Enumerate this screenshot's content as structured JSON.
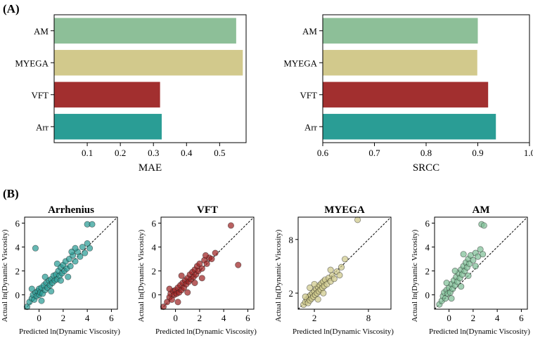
{
  "panel_labels": {
    "a": "(A)",
    "b": "(B)"
  },
  "colors": {
    "AM": "#8dbf98",
    "MYEGA": "#d2c98c",
    "VFT": "#a22f2f",
    "Arr": "#2a9d95",
    "scatter": {
      "Arrhenius": "#2a9d95",
      "VFT": "#9e2424",
      "MYEGA": "#cfc98a",
      "AM": "#7fbf97"
    }
  },
  "chart_data": [
    {
      "type": "bar",
      "orientation": "horizontal",
      "categories": [
        "AM",
        "MYEGA",
        "VFT",
        "Arr"
      ],
      "values": [
        0.55,
        0.57,
        0.32,
        0.325
      ],
      "xlabel": "MAE",
      "xlim": [
        0.0,
        0.58
      ],
      "xticks": [
        "0.1",
        "0.2",
        "0.3",
        "0.4",
        "0.5"
      ],
      "xtick_values": [
        0.1,
        0.2,
        0.3,
        0.4,
        0.5
      ]
    },
    {
      "type": "bar",
      "orientation": "horizontal",
      "categories": [
        "AM",
        "MYEGA",
        "VFT",
        "Arr"
      ],
      "values": [
        0.9,
        0.899,
        0.92,
        0.935
      ],
      "xlabel": "SRCC",
      "xlim": [
        0.6,
        1.0
      ],
      "xticks": [
        "0.6",
        "0.7",
        "0.8",
        "0.9",
        "1.0"
      ],
      "xtick_values": [
        0.6,
        0.7,
        0.8,
        0.9,
        1.0
      ]
    },
    {
      "type": "scatter",
      "title": "Arrhenius",
      "xlabel": "Predicted ln(Dynamic Viscosity)",
      "ylabel": "Actual ln(Dynamic Viscosity)",
      "xlim": [
        -1.2,
        6.5
      ],
      "ylim": [
        -1.2,
        6.5
      ],
      "xticks": [
        "0",
        "2",
        "4",
        "6"
      ],
      "xtick_values": [
        0,
        2,
        4,
        6
      ],
      "yticks": [
        "0",
        "2",
        "4",
        "6"
      ],
      "ytick_values": [
        0,
        2,
        4,
        6
      ],
      "points": [
        [
          -1,
          -1
        ],
        [
          -0.8,
          -0.6
        ],
        [
          -0.6,
          -0.3
        ],
        [
          -0.5,
          0
        ],
        [
          -0.4,
          -0.4
        ],
        [
          -0.3,
          0.2
        ],
        [
          -0.2,
          -0.1
        ],
        [
          -0.1,
          0.3
        ],
        [
          0,
          0
        ],
        [
          0,
          0.5
        ],
        [
          0.1,
          0.2
        ],
        [
          0.2,
          0.6
        ],
        [
          0.3,
          0.1
        ],
        [
          0.4,
          0.8
        ],
        [
          0.5,
          0.4
        ],
        [
          0.6,
          1
        ],
        [
          0.7,
          0.6
        ],
        [
          0.8,
          1.2
        ],
        [
          0.9,
          0.8
        ],
        [
          1,
          1.3
        ],
        [
          1.1,
          1
        ],
        [
          1.2,
          1.6
        ],
        [
          1.3,
          1.2
        ],
        [
          1.4,
          1.7
        ],
        [
          1.5,
          1.3
        ],
        [
          1.6,
          2
        ],
        [
          1.7,
          1.6
        ],
        [
          1.8,
          2.3
        ],
        [
          1.9,
          1.8
        ],
        [
          2,
          2.5
        ],
        [
          2.1,
          2
        ],
        [
          2.2,
          2.8
        ],
        [
          2.3,
          2.2
        ],
        [
          2.5,
          3
        ],
        [
          2.6,
          2.4
        ],
        [
          2.8,
          3.3
        ],
        [
          3,
          2.8
        ],
        [
          3.2,
          3.6
        ],
        [
          3.4,
          3.2
        ],
        [
          3.6,
          4
        ],
        [
          3.8,
          3.5
        ],
        [
          4,
          4.3
        ],
        [
          4,
          5.9
        ],
        [
          4.4,
          5.9
        ],
        [
          4.2,
          3.9
        ],
        [
          -0.3,
          3.9
        ],
        [
          0.2,
          -0.5
        ],
        [
          1,
          0.3
        ],
        [
          1.5,
          2.6
        ],
        [
          2.4,
          1.5
        ],
        [
          3,
          3.9
        ],
        [
          0.5,
          1.5
        ],
        [
          -0.6,
          0.5
        ],
        [
          1.8,
          1.2
        ],
        [
          2.7,
          3.6
        ]
      ]
    },
    {
      "type": "scatter",
      "title": "VFT",
      "xlabel": "Predicted ln(Dynamic Viscosity)",
      "ylabel": "Actual ln(Dynamic Viscosity)",
      "xlim": [
        -1.2,
        6.5
      ],
      "ylim": [
        -1.2,
        6.5
      ],
      "xticks": [
        "0",
        "2",
        "4",
        "6"
      ],
      "xtick_values": [
        0,
        2,
        4,
        6
      ],
      "yticks": [
        "0",
        "2",
        "4",
        "6"
      ],
      "ytick_values": [
        0,
        2,
        4,
        6
      ],
      "points": [
        [
          -1,
          -1
        ],
        [
          -0.7,
          -0.6
        ],
        [
          -0.5,
          -0.2
        ],
        [
          -0.4,
          0.1
        ],
        [
          -0.3,
          -0.4
        ],
        [
          -0.2,
          0.3
        ],
        [
          -0.1,
          0
        ],
        [
          0,
          0.4
        ],
        [
          0.1,
          0.1
        ],
        [
          0.2,
          0.6
        ],
        [
          0.3,
          0.2
        ],
        [
          0.4,
          0.8
        ],
        [
          0.5,
          0.4
        ],
        [
          0.6,
          1
        ],
        [
          0.7,
          0.6
        ],
        [
          0.8,
          1.2
        ],
        [
          0.9,
          0.9
        ],
        [
          1,
          1.4
        ],
        [
          1.1,
          1.1
        ],
        [
          1.2,
          1.7
        ],
        [
          1.3,
          1.3
        ],
        [
          1.4,
          1.9
        ],
        [
          1.5,
          1.5
        ],
        [
          1.6,
          2.1
        ],
        [
          1.7,
          1.7
        ],
        [
          1.8,
          2.4
        ],
        [
          1.9,
          2
        ],
        [
          2,
          2.6
        ],
        [
          2.2,
          2.2
        ],
        [
          2.4,
          2.9
        ],
        [
          2.6,
          2.6
        ],
        [
          2.8,
          3.1
        ],
        [
          3,
          3
        ],
        [
          3.3,
          3.5
        ],
        [
          4.6,
          5.8
        ],
        [
          5.2,
          2.5
        ],
        [
          0.2,
          -0.6
        ],
        [
          1,
          0.2
        ],
        [
          2.2,
          1.4
        ],
        [
          0.5,
          1.6
        ],
        [
          -0.5,
          0.5
        ],
        [
          1.6,
          1
        ],
        [
          2.5,
          3.3
        ]
      ]
    },
    {
      "type": "scatter",
      "title": "MYEGA",
      "xlabel": "Predicted ln(Dynamic Viscosity)",
      "ylabel": "Actual ln(Dynamic Viscosity)",
      "xlim": [
        0.2,
        10.5
      ],
      "ylim": [
        0.2,
        10.5
      ],
      "xticks": [
        "2",
        "8"
      ],
      "xtick_values": [
        2,
        8
      ],
      "yticks": [
        "2",
        "8"
      ],
      "ytick_values": [
        2,
        8
      ],
      "points": [
        [
          0.8,
          0.7
        ],
        [
          1,
          1
        ],
        [
          1.2,
          1.3
        ],
        [
          1.3,
          0.9
        ],
        [
          1.4,
          1.6
        ],
        [
          1.5,
          1.2
        ],
        [
          1.6,
          1.8
        ],
        [
          1.7,
          1.4
        ],
        [
          1.8,
          2
        ],
        [
          1.9,
          1.6
        ],
        [
          2,
          2.2
        ],
        [
          2.1,
          1.8
        ],
        [
          2.2,
          2.5
        ],
        [
          2.3,
          2
        ],
        [
          2.4,
          2.7
        ],
        [
          2.5,
          2.2
        ],
        [
          2.6,
          2.9
        ],
        [
          2.7,
          2.4
        ],
        [
          2.8,
          3.1
        ],
        [
          2.9,
          2.6
        ],
        [
          3,
          3.3
        ],
        [
          3.1,
          2.8
        ],
        [
          3.2,
          3.5
        ],
        [
          3.4,
          3
        ],
        [
          3.6,
          3.7
        ],
        [
          3.8,
          3.3
        ],
        [
          4,
          4
        ],
        [
          4.2,
          3.6
        ],
        [
          4.5,
          4.4
        ],
        [
          4.8,
          4
        ],
        [
          5,
          4.9
        ],
        [
          5.4,
          5.8
        ],
        [
          6.8,
          10.2
        ],
        [
          1.5,
          2.6
        ],
        [
          2.4,
          1.3
        ],
        [
          3,
          2
        ],
        [
          3.8,
          4.6
        ],
        [
          2,
          3
        ],
        [
          1,
          1.6
        ]
      ]
    },
    {
      "type": "scatter",
      "title": "AM",
      "xlabel": "Predicted ln(Dynamic Viscosity)",
      "ylabel": "Actual ln(Dynamic Viscosity)",
      "xlim": [
        -1.2,
        6.5
      ],
      "ylim": [
        -1.2,
        6.5
      ],
      "xticks": [
        "0",
        "2",
        "4",
        "6"
      ],
      "xtick_values": [
        0,
        2,
        4,
        6
      ],
      "yticks": [
        "0",
        "2",
        "4",
        "6"
      ],
      "ytick_values": [
        0,
        2,
        4,
        6
      ],
      "points": [
        [
          -0.8,
          -0.8
        ],
        [
          -0.6,
          -0.5
        ],
        [
          -0.5,
          -0.1
        ],
        [
          -0.4,
          0.2
        ],
        [
          -0.3,
          -0.3
        ],
        [
          -0.2,
          0.4
        ],
        [
          -0.1,
          0.1
        ],
        [
          0,
          0.6
        ],
        [
          0.1,
          0.2
        ],
        [
          0.2,
          0.9
        ],
        [
          0.3,
          0.5
        ],
        [
          0.4,
          1.2
        ],
        [
          0.5,
          0.8
        ],
        [
          0.6,
          1.5
        ],
        [
          0.7,
          1.1
        ],
        [
          0.8,
          1.8
        ],
        [
          0.9,
          1.4
        ],
        [
          1,
          2.1
        ],
        [
          1.1,
          1.7
        ],
        [
          1.2,
          2.4
        ],
        [
          1.3,
          2
        ],
        [
          1.4,
          2.7
        ],
        [
          1.5,
          2.3
        ],
        [
          1.6,
          3
        ],
        [
          1.7,
          2.6
        ],
        [
          1.8,
          3.3
        ],
        [
          2,
          2.9
        ],
        [
          2.2,
          3.5
        ],
        [
          2.4,
          3.2
        ],
        [
          2.6,
          3.8
        ],
        [
          2.8,
          3.4
        ],
        [
          2.7,
          5.9
        ],
        [
          2.9,
          5.8
        ],
        [
          0.2,
          -0.3
        ],
        [
          1,
          0.7
        ],
        [
          1.6,
          1.6
        ],
        [
          0.5,
          2
        ],
        [
          2.2,
          2.4
        ],
        [
          -0.2,
          1
        ],
        [
          1.2,
          3.4
        ]
      ]
    }
  ]
}
